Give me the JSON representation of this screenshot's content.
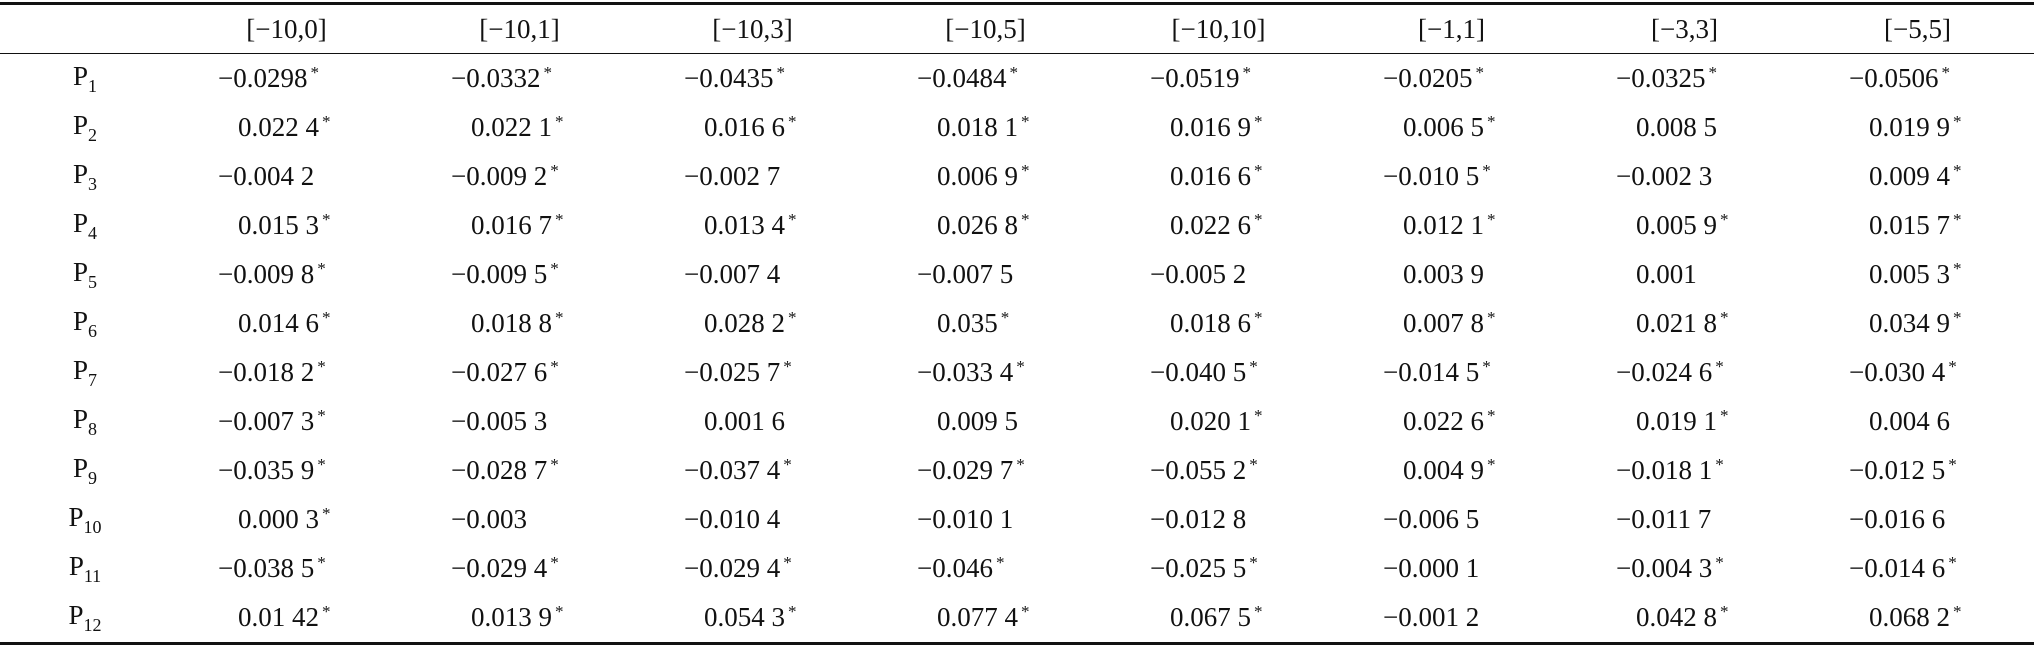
{
  "table": {
    "columns": [
      "[−10,0]",
      "[−10,1]",
      "[−10,3]",
      "[−10,5]",
      "[−10,10]",
      "[−1,1]",
      "[−3,3]",
      "[−5,5]"
    ],
    "rows": [
      {
        "label": {
          "base": "P",
          "sub": "1"
        },
        "cells": [
          {
            "text": "−0.0298",
            "star": "*"
          },
          {
            "text": "−0.0332",
            "star": "*"
          },
          {
            "text": "−0.0435",
            "star": "*"
          },
          {
            "text": "−0.0484",
            "star": "*"
          },
          {
            "text": "−0.0519",
            "star": "*"
          },
          {
            "text": "−0.0205",
            "star": "*"
          },
          {
            "text": "−0.0325",
            "star": "*"
          },
          {
            "text": "−0.0506",
            "star": "*"
          }
        ]
      },
      {
        "label": {
          "base": "P",
          "sub": "2"
        },
        "cells": [
          {
            "text": "0.022 4",
            "star": "*"
          },
          {
            "text": "0.022 1",
            "star": "*"
          },
          {
            "text": "0.016 6",
            "star": "*"
          },
          {
            "text": "0.018 1",
            "star": "*"
          },
          {
            "text": "0.016 9",
            "star": "*"
          },
          {
            "text": "0.006 5",
            "star": "*"
          },
          {
            "text": "0.008 5"
          },
          {
            "text": "0.019 9",
            "star": "*"
          }
        ]
      },
      {
        "label": {
          "base": "P",
          "sub": "3"
        },
        "cells": [
          {
            "text": "−0.004 2"
          },
          {
            "text": "−0.009 2",
            "star": "*"
          },
          {
            "text": "−0.002 7"
          },
          {
            "text": "0.006 9",
            "star": "*"
          },
          {
            "text": "0.016 6",
            "star": "*"
          },
          {
            "text": "−0.010 5",
            "star": "*"
          },
          {
            "text": "−0.002 3"
          },
          {
            "text": "0.009 4",
            "star": "*"
          }
        ]
      },
      {
        "label": {
          "base": "P",
          "sub": "4"
        },
        "cells": [
          {
            "text": "0.015 3",
            "star": "*"
          },
          {
            "text": "0.016 7",
            "star": "*"
          },
          {
            "text": "0.013 4",
            "star": "*"
          },
          {
            "text": "0.026 8",
            "star": "*"
          },
          {
            "text": "0.022 6",
            "star": "*"
          },
          {
            "text": "0.012 1",
            "star": "*"
          },
          {
            "text": "0.005 9",
            "star": "*"
          },
          {
            "text": "0.015 7",
            "star": "*"
          }
        ]
      },
      {
        "label": {
          "base": "P",
          "sub": "5"
        },
        "cells": [
          {
            "text": "−0.009 8",
            "star": "*"
          },
          {
            "text": "−0.009 5",
            "star": "*"
          },
          {
            "text": "−0.007 4"
          },
          {
            "text": "−0.007 5"
          },
          {
            "text": "−0.005 2"
          },
          {
            "text": "0.003 9"
          },
          {
            "text": "0.001"
          },
          {
            "text": "0.005 3",
            "star": "*"
          }
        ]
      },
      {
        "label": {
          "base": "P",
          "sub": "6"
        },
        "cells": [
          {
            "text": "0.014 6",
            "star": "*"
          },
          {
            "text": "0.018 8",
            "star": "*"
          },
          {
            "text": "0.028 2",
            "star": "*"
          },
          {
            "text": "0.035",
            "star": "*"
          },
          {
            "text": "0.018 6",
            "star": "*"
          },
          {
            "text": "0.007 8",
            "star": "*"
          },
          {
            "text": "0.021 8",
            "star": "*"
          },
          {
            "text": "0.034 9",
            "star": "*"
          }
        ]
      },
      {
        "label": {
          "base": "P",
          "sub": "7"
        },
        "cells": [
          {
            "text": "−0.018 2",
            "star": "*"
          },
          {
            "text": "−0.027 6",
            "star": "*"
          },
          {
            "text": "−0.025 7",
            "star": "*"
          },
          {
            "text": "−0.033 4",
            "star": "*"
          },
          {
            "text": "−0.040 5",
            "star": "*"
          },
          {
            "text": "−0.014 5",
            "star": "*"
          },
          {
            "text": "−0.024 6",
            "star": "*"
          },
          {
            "text": "−0.030 4",
            "star": "*"
          }
        ]
      },
      {
        "label": {
          "base": "P",
          "sub": "8"
        },
        "cells": [
          {
            "text": "−0.007 3",
            "star": "*"
          },
          {
            "text": "−0.005 3"
          },
          {
            "text": "0.001 6"
          },
          {
            "text": "0.009 5"
          },
          {
            "text": "0.020 1",
            "star": "*"
          },
          {
            "text": "0.022 6",
            "star": "*"
          },
          {
            "text": "0.019 1",
            "star": "*"
          },
          {
            "text": "0.004 6"
          }
        ]
      },
      {
        "label": {
          "base": "P",
          "sub": "9"
        },
        "cells": [
          {
            "text": "−0.035 9",
            "star": "*"
          },
          {
            "text": "−0.028 7",
            "star": "*"
          },
          {
            "text": "−0.037 4",
            "star": "*"
          },
          {
            "text": "−0.029 7",
            "star": "*"
          },
          {
            "text": "−0.055 2",
            "star": "*"
          },
          {
            "text": "0.004 9",
            "star": "*"
          },
          {
            "text": "−0.018 1",
            "star": "*"
          },
          {
            "text": "−0.012 5",
            "star": "*"
          }
        ]
      },
      {
        "label": {
          "base": "P",
          "sub": "10"
        },
        "cells": [
          {
            "text": "0.000 3",
            "star": "*"
          },
          {
            "text": "−0.003"
          },
          {
            "text": "−0.010 4"
          },
          {
            "text": "−0.010 1"
          },
          {
            "text": "−0.012 8"
          },
          {
            "text": "−0.006 5"
          },
          {
            "text": "−0.011 7"
          },
          {
            "text": "−0.016 6"
          }
        ]
      },
      {
        "label": {
          "base": "P",
          "sub": "11"
        },
        "cells": [
          {
            "text": "−0.038 5",
            "star": "*"
          },
          {
            "text": "−0.029 4",
            "star": "*"
          },
          {
            "text": "−0.029 4",
            "star": "*"
          },
          {
            "text": "−0.046",
            "star": "*"
          },
          {
            "text": "−0.025 5",
            "star": "*"
          },
          {
            "text": "−0.000 1"
          },
          {
            "text": "−0.004 3",
            "star": "*"
          },
          {
            "text": "−0.014 6",
            "star": "*"
          }
        ]
      },
      {
        "label": {
          "base": "P",
          "sub": "12"
        },
        "cells": [
          {
            "text": "0.01 42",
            "star": "*"
          },
          {
            "text": "0.013 9",
            "star": "*"
          },
          {
            "text": "0.054 3",
            "star": "*"
          },
          {
            "text": "0.077 4",
            "star": "*"
          },
          {
            "text": "0.067 5",
            "star": "*"
          },
          {
            "text": "−0.001 2"
          },
          {
            "text": "0.042 8",
            "star": "*"
          },
          {
            "text": "0.068 2",
            "star": "*"
          }
        ]
      }
    ]
  }
}
